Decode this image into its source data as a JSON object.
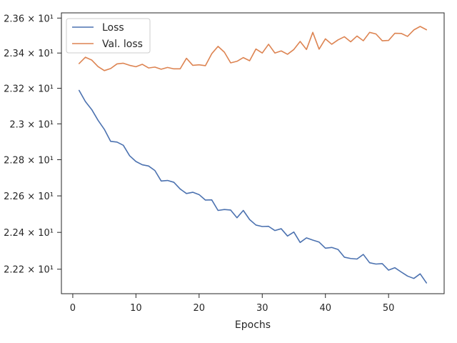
{
  "chart_data": {
    "type": "line",
    "title": "",
    "xlabel": "Epochs",
    "ylabel": "",
    "xlim": [
      -1.8,
      58.8
    ],
    "ylim": [
      22.068,
      23.63
    ],
    "x_ticks": [
      0,
      10,
      20,
      30,
      40,
      50
    ],
    "x_tick_labels": [
      "0",
      "10",
      "20",
      "30",
      "40",
      "50"
    ],
    "y_ticks": [
      22.2,
      22.4,
      22.6,
      22.8,
      23.0,
      23.2,
      23.4,
      23.6
    ],
    "y_tick_labels": [
      "2.22 × 10¹",
      "2.24 × 10¹",
      "2.26 × 10¹",
      "2.28 × 10¹",
      "2.3 × 10¹",
      "2.32 × 10¹",
      "2.34 × 10¹",
      "2.36 × 10¹"
    ],
    "y_scale": "log",
    "grid": false,
    "legend_position": "top-left",
    "x": [
      1,
      2,
      3,
      4,
      5,
      6,
      7,
      8,
      9,
      10,
      11,
      12,
      13,
      14,
      15,
      16,
      17,
      18,
      19,
      20,
      21,
      22,
      23,
      24,
      25,
      26,
      27,
      28,
      29,
      30,
      31,
      32,
      33,
      34,
      35,
      36,
      37,
      38,
      39,
      40,
      41,
      42,
      43,
      44,
      45,
      46,
      47,
      48,
      49,
      50,
      51,
      52,
      53,
      54,
      55,
      56
    ],
    "series": [
      {
        "name": "Loss",
        "color": "#4c72b0",
        "values": [
          23.188,
          23.125,
          23.08,
          23.02,
          22.969,
          22.902,
          22.898,
          22.88,
          22.822,
          22.79,
          22.772,
          22.765,
          22.74,
          22.682,
          22.685,
          22.675,
          22.638,
          22.613,
          22.62,
          22.607,
          22.577,
          22.578,
          22.52,
          22.525,
          22.522,
          22.48,
          22.52,
          22.47,
          22.44,
          22.432,
          22.433,
          22.41,
          22.42,
          22.38,
          22.402,
          22.345,
          22.37,
          22.358,
          22.347,
          22.314,
          22.318,
          22.307,
          22.265,
          22.258,
          22.255,
          22.28,
          22.235,
          22.228,
          22.23,
          22.195,
          22.208,
          22.185,
          22.163,
          22.15,
          22.175,
          22.126
        ]
      },
      {
        "name": "Val. loss",
        "color": "#dd8452",
        "values": [
          23.34,
          23.376,
          23.36,
          23.323,
          23.3,
          23.312,
          23.338,
          23.342,
          23.33,
          23.322,
          23.336,
          23.315,
          23.32,
          23.308,
          23.318,
          23.31,
          23.31,
          23.37,
          23.33,
          23.333,
          23.328,
          23.396,
          23.438,
          23.405,
          23.344,
          23.353,
          23.374,
          23.356,
          23.423,
          23.4,
          23.45,
          23.4,
          23.412,
          23.393,
          23.42,
          23.466,
          23.42,
          23.518,
          23.422,
          23.481,
          23.45,
          23.475,
          23.493,
          23.464,
          23.497,
          23.47,
          23.518,
          23.509,
          23.47,
          23.472,
          23.513,
          23.512,
          23.495,
          23.532,
          23.552,
          23.533
        ]
      }
    ]
  }
}
